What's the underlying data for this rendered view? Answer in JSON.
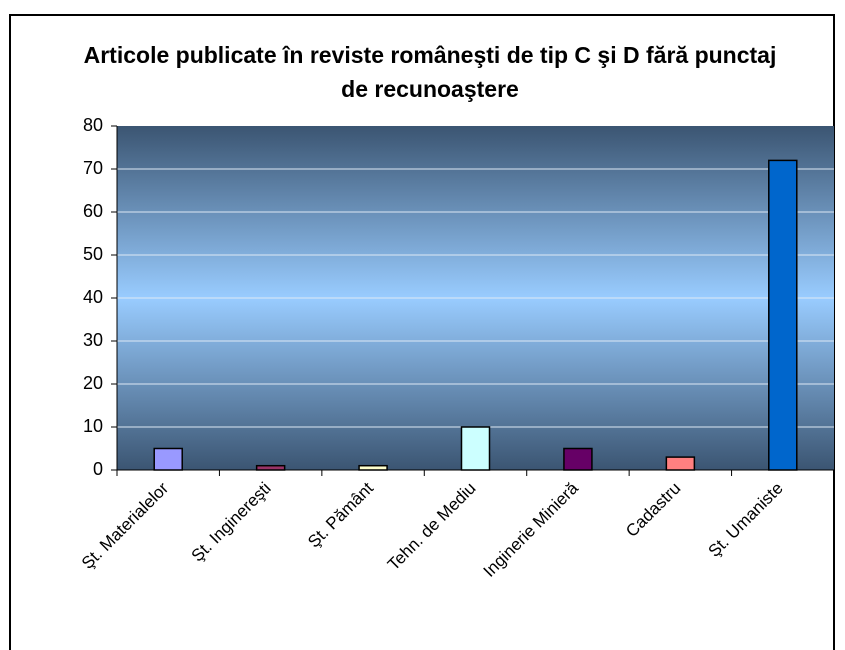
{
  "chart_data": {
    "type": "bar",
    "title": "Articole publicate în reviste româneşti de tip C şi D fără punctaj de recunoaştere",
    "categories": [
      "Şt. Materialelor",
      "Şt. Inginereşti",
      "Şt. Pământ",
      "Tehn. de Mediu",
      "Inginerie Minieră",
      "Cadastru",
      "Şt. Umaniste"
    ],
    "values": [
      5,
      1,
      1,
      10,
      5,
      3,
      72
    ],
    "colors": [
      "#9999ff",
      "#993366",
      "#ffffcc",
      "#ccffff",
      "#660066",
      "#ff8080",
      "#0066cc"
    ],
    "ylim": [
      0,
      80
    ],
    "yticks": [
      0,
      10,
      20,
      30,
      40,
      50,
      60,
      70,
      80
    ],
    "grid": true
  }
}
